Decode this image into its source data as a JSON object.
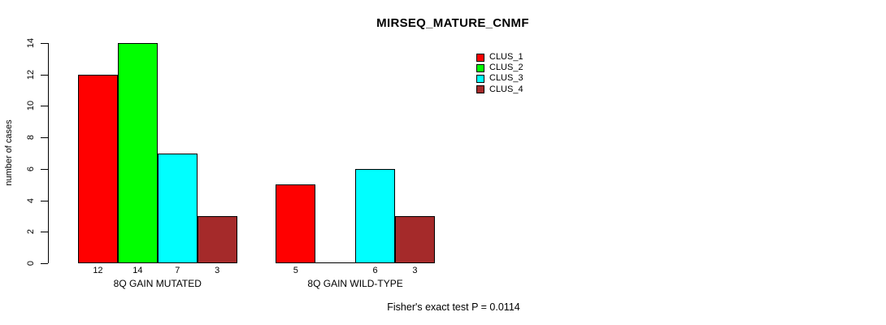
{
  "chart_data": {
    "type": "bar",
    "title": "MIRSEQ_MATURE_CNMF",
    "xlabel": "",
    "ylabel": "number of cases",
    "categories": [
      "8Q GAIN MUTATED",
      "8Q GAIN WILD-TYPE"
    ],
    "series": [
      {
        "name": "CLUS_1",
        "color": "#FF0000",
        "values": [
          12,
          5
        ]
      },
      {
        "name": "CLUS_2",
        "color": "#00FF00",
        "values": [
          14,
          0
        ]
      },
      {
        "name": "CLUS_3",
        "color": "#00FFFF",
        "values": [
          7,
          6
        ]
      },
      {
        "name": "CLUS_4",
        "color": "#A52A2A",
        "values": [
          3,
          3
        ]
      }
    ],
    "bar_value_labels": {
      "8Q GAIN MUTATED": [
        12,
        14,
        7,
        3
      ],
      "8Q GAIN WILD-TYPE": [
        5,
        6,
        3
      ]
    },
    "ylim": [
      0,
      14
    ],
    "yticks": [
      0,
      2,
      4,
      6,
      8,
      10,
      12,
      14
    ],
    "grid": false,
    "legend_position": "top-right",
    "legend_entries": [
      "CLUS_1",
      "CLUS_2",
      "CLUS_3",
      "CLUS_4"
    ],
    "annotation": "Fisher's exact test P = 0.0114",
    "background_color": "#FFFFFF",
    "bar_border_color": "#000000"
  }
}
